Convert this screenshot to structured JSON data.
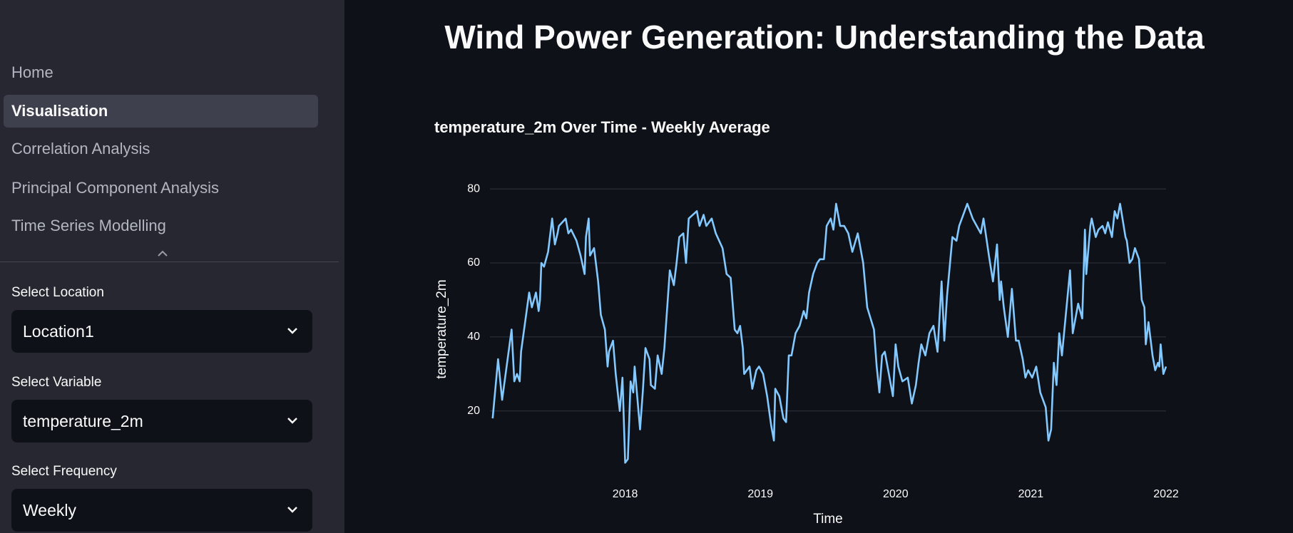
{
  "header": {
    "title": "Wind Power Generation: Understanding the Data"
  },
  "nav": {
    "items": [
      "Home",
      "Visualisation",
      "Correlation Analysis",
      "Principal Component Analysis",
      "Time Series Modelling"
    ],
    "active": 1
  },
  "controls": [
    {
      "label": "Select Location",
      "value": "Location1"
    },
    {
      "label": "Select Variable",
      "value": "temperature_2m"
    },
    {
      "label": "Select Frequency",
      "value": "Weekly"
    }
  ],
  "chart_data": {
    "type": "line",
    "title": "temperature_2m Over Time - Weekly Average",
    "x_label": "Time",
    "y_label": "temperature_2m",
    "color": "#83c9ff",
    "grid": true,
    "xlim": [
      2017,
      2022
    ],
    "xticks": [
      2018,
      2019,
      2020,
      2021,
      2022
    ],
    "ylim": [
      3,
      86
    ],
    "yticks": [
      20,
      40,
      60,
      80
    ],
    "x": [
      2017.02,
      2017.06,
      2017.09,
      2017.16,
      2017.18,
      2017.2,
      2017.22,
      2017.23,
      2017.26,
      2017.29,
      2017.31,
      2017.34,
      2017.36,
      2017.37,
      2017.38,
      2017.4,
      2017.43,
      2017.46,
      2017.48,
      2017.5,
      2017.51,
      2017.56,
      2017.58,
      2017.6,
      2017.64,
      2017.67,
      2017.7,
      2017.71,
      2017.73,
      2017.74,
      2017.77,
      2017.8,
      2017.82,
      2017.85,
      2017.87,
      2017.88,
      2017.91,
      2017.93,
      2017.96,
      2017.98,
      2018.0,
      2018.02,
      2018.04,
      2018.06,
      2018.07,
      2018.11,
      2018.13,
      2018.15,
      2018.18,
      2018.19,
      2018.22,
      2018.24,
      2018.27,
      2018.29,
      2018.33,
      2018.36,
      2018.38,
      2018.4,
      2018.43,
      2018.45,
      2018.47,
      2018.53,
      2018.55,
      2018.58,
      2018.6,
      2018.64,
      2018.67,
      2018.72,
      2018.75,
      2018.78,
      2018.81,
      2018.83,
      2018.85,
      2018.87,
      2018.88,
      2018.92,
      2018.94,
      2018.97,
      2018.99,
      2019.02,
      2019.05,
      2019.08,
      2019.1,
      2019.11,
      2019.14,
      2019.17,
      2019.19,
      2019.21,
      2019.23,
      2019.26,
      2019.29,
      2019.32,
      2019.34,
      2019.36,
      2019.39,
      2019.42,
      2019.44,
      2019.47,
      2019.49,
      2019.52,
      2019.54,
      2019.56,
      2019.59,
      2019.62,
      2019.65,
      2019.68,
      2019.72,
      2019.76,
      2019.78,
      2019.79,
      2019.84,
      2019.86,
      2019.88,
      2019.9,
      2019.92,
      2019.96,
      2019.98,
      2020.0,
      2020.02,
      2020.05,
      2020.09,
      2020.12,
      2020.15,
      2020.17,
      2020.19,
      2020.22,
      2020.25,
      2020.28,
      2020.31,
      2020.34,
      2020.36,
      2020.38,
      2020.42,
      2020.45,
      2020.47,
      2020.5,
      2020.53,
      2020.57,
      2020.6,
      2020.63,
      2020.65,
      2020.69,
      2020.72,
      2020.75,
      2020.77,
      2020.78,
      2020.8,
      2020.83,
      2020.86,
      2020.89,
      2020.91,
      2020.94,
      2020.96,
      2020.98,
      2021.01,
      2021.04,
      2021.07,
      2021.11,
      2021.13,
      2021.15,
      2021.17,
      2021.19,
      2021.21,
      2021.23,
      2021.29,
      2021.31,
      2021.35,
      2021.38,
      2021.4,
      2021.41,
      2021.44,
      2021.45,
      2021.48,
      2021.5,
      2021.53,
      2021.55,
      2021.57,
      2021.6,
      2021.62,
      2021.64,
      2021.66,
      2021.7,
      2021.71,
      2021.73,
      2021.75,
      2021.77,
      2021.8,
      2021.82,
      2021.84,
      2021.85,
      2021.87,
      2021.9,
      2021.92,
      2021.94,
      2021.95,
      2021.96,
      2021.98,
      2022.0
    ],
    "values": [
      18,
      34,
      23,
      42,
      28,
      30,
      28,
      36,
      44,
      52,
      48,
      52,
      47,
      50,
      60,
      59,
      63,
      72,
      65,
      68,
      70,
      72,
      68,
      69,
      66,
      62,
      57,
      67,
      72,
      62,
      64,
      55,
      46,
      42,
      32,
      36,
      39,
      30,
      20,
      29,
      6,
      7,
      28,
      25,
      32,
      15,
      25,
      37,
      34,
      27,
      26,
      35,
      30,
      37,
      58,
      54,
      60,
      67,
      68,
      60,
      72,
      74,
      70,
      73,
      70,
      72,
      68,
      64,
      57,
      56,
      42,
      41,
      43,
      37,
      30,
      32,
      26,
      31,
      32,
      30,
      24,
      16,
      12,
      26,
      24,
      18,
      17,
      35,
      35,
      41,
      43,
      47,
      45,
      52,
      57,
      60,
      61,
      61,
      70,
      72,
      69,
      76,
      70,
      70,
      68,
      63,
      68,
      60,
      52,
      48,
      42,
      32,
      25,
      35,
      36,
      28,
      24,
      38,
      32,
      28,
      29,
      22,
      27,
      33,
      38,
      35,
      41,
      43,
      36,
      55,
      39,
      51,
      67,
      66,
      70,
      73,
      76,
      72,
      70,
      68,
      72,
      62,
      55,
      65,
      50,
      55,
      48,
      40,
      53,
      39,
      39,
      34,
      29,
      31,
      29,
      32,
      25,
      21,
      12,
      15,
      33,
      27,
      41,
      35,
      58,
      41,
      49,
      45,
      69,
      57,
      70,
      72,
      67,
      69,
      70,
      68,
      71,
      67,
      74,
      72,
      76,
      67,
      66,
      60,
      61,
      64,
      61,
      50,
      48,
      38,
      44,
      35,
      31,
      33,
      32,
      38,
      30,
      32
    ]
  }
}
